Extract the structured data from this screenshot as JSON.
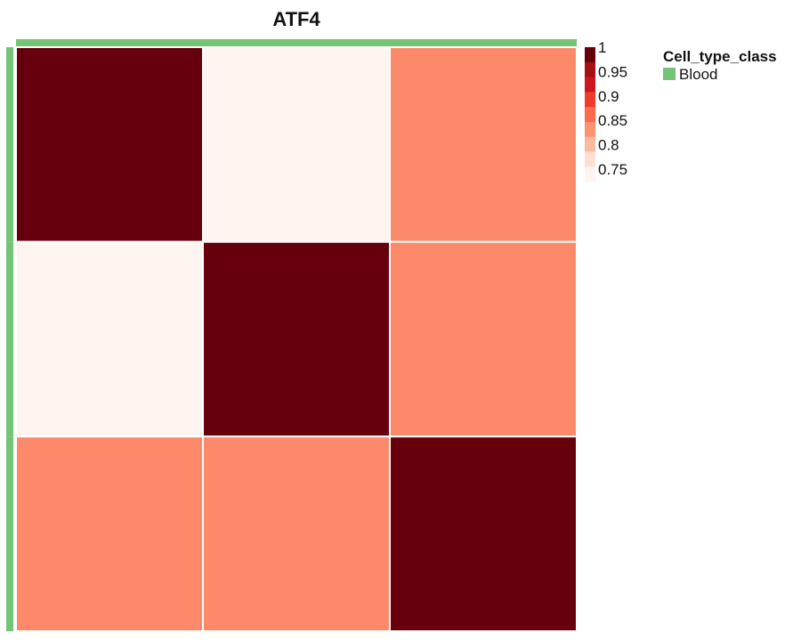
{
  "chart_data": {
    "type": "heatmap",
    "title": "ATF4",
    "rows": 3,
    "cols": 3,
    "values": [
      [
        1.0,
        0.75,
        0.85
      ],
      [
        0.75,
        1.0,
        0.85
      ],
      [
        0.85,
        0.85,
        1.0
      ]
    ],
    "color_scale": {
      "min": 0.75,
      "max": 1.0,
      "ticks": [
        "1",
        "0.95",
        "0.9",
        "0.85",
        "0.8",
        "0.75"
      ],
      "tick_values": [
        1.0,
        0.95,
        0.9,
        0.85,
        0.8,
        0.75
      ],
      "colors": [
        "#fff5f0",
        "#fee0d2",
        "#fcbba1",
        "#fc9272",
        "#fb6a4a",
        "#ef3b2c",
        "#cb181d",
        "#a50f15",
        "#67000d"
      ]
    },
    "annotation": {
      "title": "Cell_type_class",
      "entries": [
        {
          "label": "Blood",
          "color": "#74c476"
        }
      ],
      "row_classes": [
        "Blood",
        "Blood",
        "Blood"
      ],
      "col_classes": [
        "Blood",
        "Blood",
        "Blood"
      ]
    },
    "legend_placement": "right"
  }
}
